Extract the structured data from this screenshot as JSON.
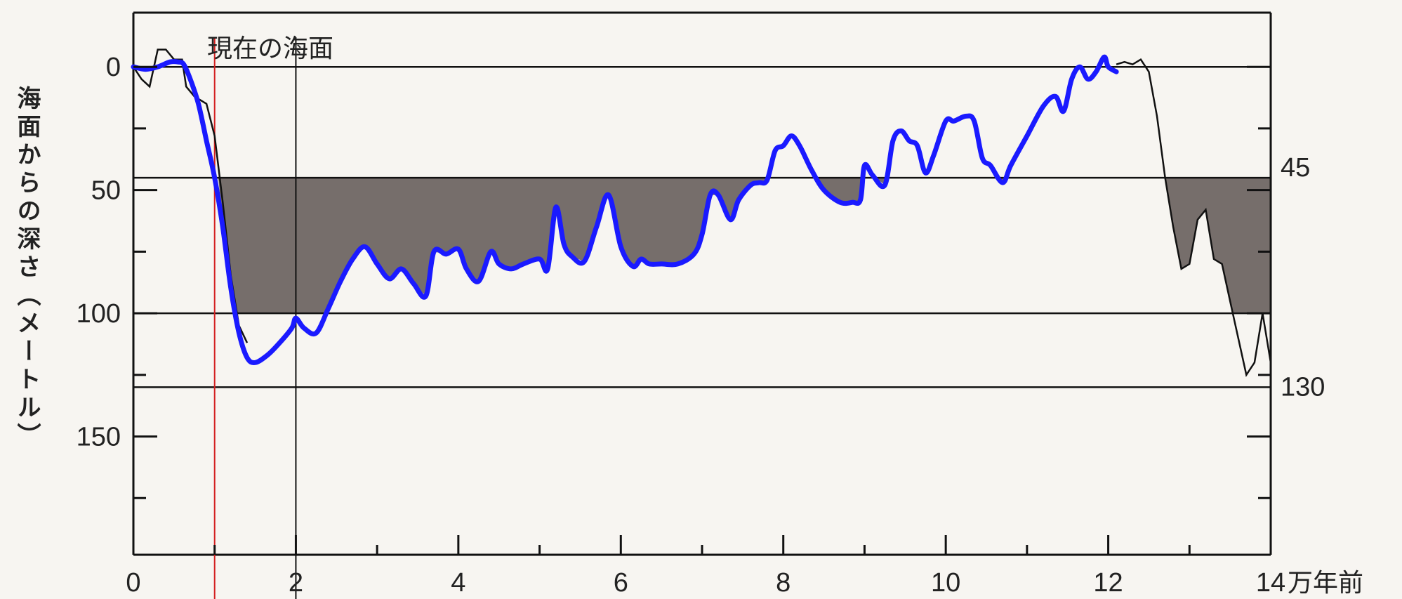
{
  "chart_data": {
    "type": "line",
    "title": "",
    "xlabel": "",
    "ylabel": "海面からの深さ（メートル）",
    "x_unit_label": "万年前",
    "xlim": [
      0,
      14
    ],
    "ylim": [
      -22,
      198
    ],
    "y_inverted": true,
    "grid": false,
    "x_ticks": [
      0,
      2,
      4,
      6,
      8,
      10,
      12,
      14
    ],
    "x_tick_labels": [
      "0",
      "2",
      "4",
      "6",
      "8",
      "10",
      "12",
      "14"
    ],
    "y_ticks": [
      0,
      50,
      100,
      150
    ],
    "y_tick_labels": [
      "0",
      "50",
      "100",
      "150"
    ],
    "reference_lines": [
      {
        "value": 0,
        "label": "現在の海面"
      },
      {
        "value": 45,
        "label": "45"
      },
      {
        "value": 100,
        "label": ""
      },
      {
        "value": 130,
        "label": "130"
      }
    ],
    "vertical_markers": [
      {
        "x": 1.0,
        "color": "#d42020"
      },
      {
        "x": 2.0,
        "color": "#111111"
      }
    ],
    "series": [
      {
        "name": "",
        "color": "#1a1aff",
        "x": [
          0,
          0.15,
          0.3,
          0.45,
          0.55,
          0.62,
          0.7,
          0.8,
          0.9,
          1.0,
          1.1,
          1.2,
          1.3,
          1.4,
          1.5,
          1.65,
          1.8,
          1.95,
          2.0,
          2.1,
          2.25,
          2.4,
          2.55,
          2.7,
          2.85,
          3.0,
          3.15,
          3.3,
          3.45,
          3.6,
          3.7,
          3.85,
          4.0,
          4.1,
          4.25,
          4.4,
          4.5,
          4.65,
          4.8,
          5.0,
          5.1,
          5.2,
          5.3,
          5.4,
          5.55,
          5.7,
          5.85,
          6.0,
          6.15,
          6.25,
          6.35,
          6.5,
          6.7,
          6.9,
          7.0,
          7.1,
          7.2,
          7.35,
          7.45,
          7.6,
          7.7,
          7.8,
          7.9,
          8.0,
          8.1,
          8.2,
          8.35,
          8.5,
          8.7,
          8.85,
          8.95,
          9.0,
          9.1,
          9.25,
          9.35,
          9.45,
          9.55,
          9.65,
          9.75,
          9.85,
          10.0,
          10.1,
          10.25,
          10.35,
          10.45,
          10.55,
          10.7,
          10.8,
          11.0,
          11.2,
          11.35,
          11.45,
          11.55,
          11.65,
          11.75,
          11.85,
          11.95,
          12.0,
          12.1
        ],
        "y": [
          0,
          1,
          0,
          -2,
          -2,
          -1,
          5,
          15,
          30,
          45,
          65,
          90,
          108,
          118,
          120,
          117,
          112,
          106,
          102,
          106,
          108,
          98,
          87,
          78,
          73,
          80,
          86,
          82,
          88,
          93,
          75,
          76,
          74,
          82,
          87,
          75,
          80,
          82,
          80,
          78,
          82,
          57,
          72,
          77,
          79,
          65,
          52,
          73,
          81,
          78,
          80,
          80,
          80,
          76,
          68,
          52,
          52,
          62,
          54,
          48,
          47,
          46,
          34,
          32,
          28,
          32,
          42,
          50,
          55,
          55,
          54,
          40,
          44,
          48,
          30,
          26,
          30,
          32,
          43,
          36,
          22,
          22,
          20,
          22,
          37,
          40,
          47,
          40,
          28,
          16,
          12,
          18,
          5,
          0,
          5,
          2,
          -4,
          0,
          2
        ]
      },
      {
        "name": "",
        "color": "#111111",
        "x": [
          0,
          0.1,
          0.2,
          0.3,
          0.4,
          0.5,
          0.6,
          0.65,
          0.75,
          0.9,
          1.0,
          1.1,
          1.2,
          1.3,
          1.4,
          12.1,
          12.2,
          12.3,
          12.4,
          12.5,
          12.6,
          12.7,
          12.8,
          12.9,
          13.0,
          13.1,
          13.2,
          13.3,
          13.4,
          13.5,
          13.6,
          13.7,
          13.8,
          13.9,
          14.0
        ],
        "y": [
          0,
          5,
          8,
          -7,
          -7,
          -3,
          -3,
          8,
          12,
          15,
          28,
          55,
          85,
          105,
          112,
          -1,
          -2,
          -1,
          -3,
          2,
          20,
          45,
          65,
          82,
          80,
          62,
          58,
          78,
          80,
          95,
          110,
          125,
          120,
          100,
          120
        ]
      }
    ]
  }
}
